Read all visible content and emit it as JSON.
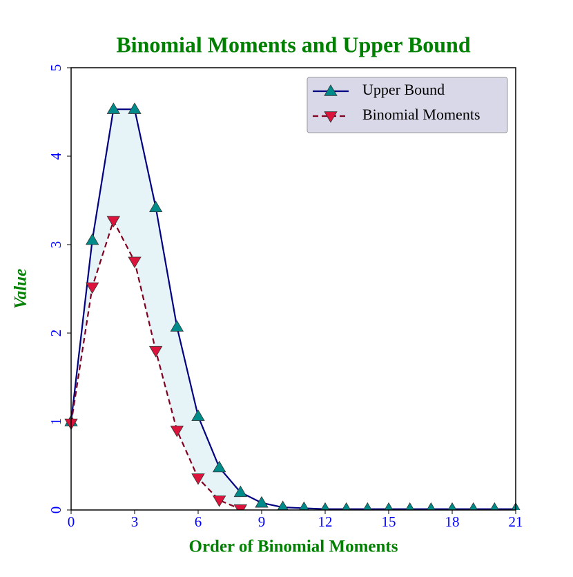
{
  "chart_data": {
    "type": "line",
    "title": "Binomial Moments and Upper Bound",
    "xlabel": "Order of Binomial Moments",
    "ylabel": "Value",
    "x": [
      0,
      1,
      2,
      3,
      4,
      5,
      6,
      7,
      8,
      9,
      10,
      11,
      12,
      13,
      14,
      15,
      16,
      17,
      18,
      19,
      20,
      21
    ],
    "series": [
      {
        "name": "Upper Bound",
        "color": "#000080",
        "marker_color": "#008b8b",
        "marker": "up",
        "dashed": false,
        "values": [
          1.0,
          3.05,
          4.53,
          4.53,
          3.42,
          2.07,
          1.06,
          0.48,
          0.2,
          0.08,
          0.03,
          0.02,
          0.01,
          0.01,
          0.01,
          0.01,
          0.01,
          0.01,
          0.01,
          0.01,
          0.01,
          0.01
        ]
      },
      {
        "name": "Binomial Moments",
        "color": "#800020",
        "marker_color": "#dc143c",
        "marker": "down",
        "dashed": true,
        "values": [
          0.98,
          2.52,
          3.27,
          2.81,
          1.8,
          0.9,
          0.36,
          0.11,
          0.01,
          null,
          null,
          null,
          null,
          null,
          null,
          null,
          null,
          null,
          null,
          null,
          null,
          null
        ]
      }
    ],
    "fill_between": true,
    "fill_color": "#add8e6",
    "xlim": [
      0,
      21
    ],
    "ylim": [
      0,
      5
    ],
    "xticks": [
      0,
      3,
      6,
      9,
      12,
      15,
      18,
      21
    ],
    "yticks": [
      0,
      1,
      2,
      3,
      4,
      5
    ],
    "legend": "upper right"
  }
}
